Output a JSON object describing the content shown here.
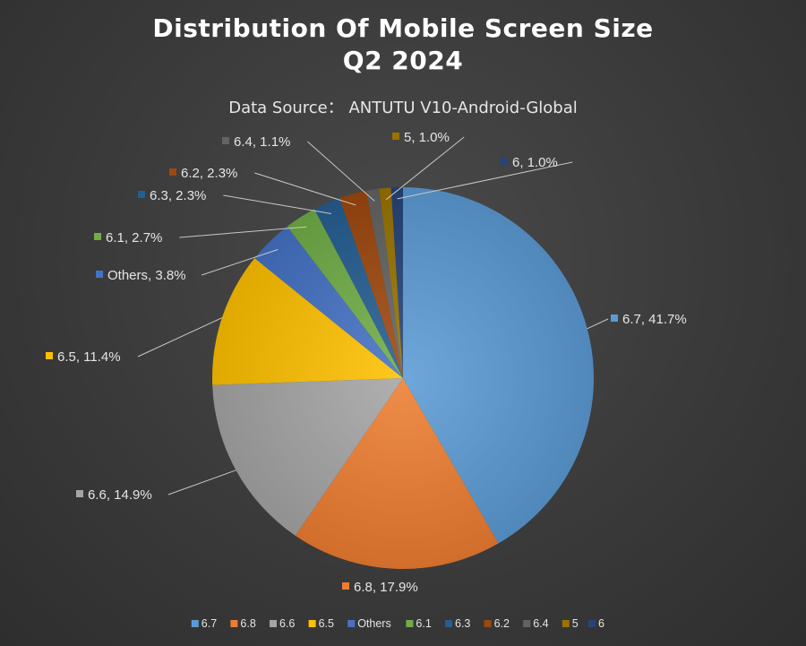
{
  "chart_data": {
    "type": "pie",
    "title": [
      "Distribution Of Mobile Screen Size",
      "Q2 2024"
    ],
    "subtitle": "Data Source： ANTUTU V10-Android-Global",
    "slices": [
      {
        "name": "6.7",
        "value": 41.7,
        "label": "6.7, 41.7%",
        "color": "#5b9bd5"
      },
      {
        "name": "6.8",
        "value": 17.9,
        "label": "6.8, 17.9%",
        "color": "#ed7d31"
      },
      {
        "name": "6.6",
        "value": 14.9,
        "label": "6.6, 14.9%",
        "color": "#a5a5a5"
      },
      {
        "name": "6.5",
        "value": 11.4,
        "label": "6.5, 11.4%",
        "color": "#ffc000"
      },
      {
        "name": "Others",
        "value": 3.8,
        "label": "Others, 3.8%",
        "color": "#4472c4"
      },
      {
        "name": "6.1",
        "value": 2.7,
        "label": "6.1, 2.7%",
        "color": "#70ad47"
      },
      {
        "name": "6.3",
        "value": 2.3,
        "label": "6.3, 2.3%",
        "color": "#255e91"
      },
      {
        "name": "6.2",
        "value": 2.3,
        "label": "6.2, 2.3%",
        "color": "#9e480e"
      },
      {
        "name": "6.4",
        "value": 1.1,
        "label": "6.4, 1.1%",
        "color": "#636363"
      },
      {
        "name": "5",
        "value": 1.0,
        "label": "5, 1.0%",
        "color": "#997300"
      },
      {
        "name": "6",
        "value": 1.0,
        "label": "6, 1.0%",
        "color": "#264478"
      }
    ],
    "legend_position": "bottom"
  }
}
